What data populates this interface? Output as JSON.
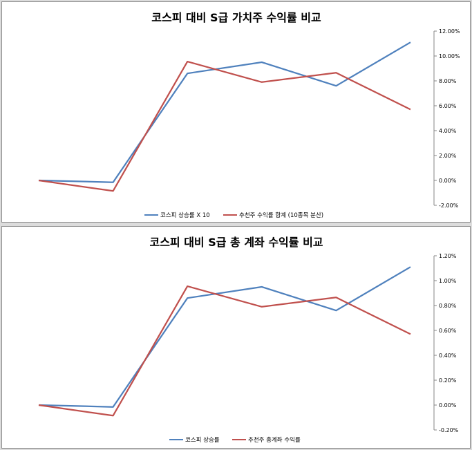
{
  "chart_data": [
    {
      "type": "line",
      "title": "코스피 대비 S급 가치주 수익률 비교",
      "x": [
        1,
        2,
        3,
        4,
        5,
        6
      ],
      "ylim": [
        -0.02,
        0.12
      ],
      "yticks": [
        -0.02,
        0,
        0.02,
        0.04,
        0.06,
        0.08,
        0.1,
        0.12
      ],
      "ytick_labels": [
        "-2.00%",
        "0.00%",
        "2.00%",
        "4.00%",
        "6.00%",
        "8.00%",
        "10.00%",
        "12.00%"
      ],
      "yaxis_side": "right",
      "grid": false,
      "legend": "bottom",
      "series": [
        {
          "name": "코스피 상승률 X 10",
          "color": "#4f81bd",
          "values": [
            0.0,
            -0.0015,
            0.086,
            0.095,
            0.076,
            0.111
          ]
        },
        {
          "name": "추천주 수익률 합계 (10종목 분산)",
          "color": "#c0504d",
          "values": [
            0.0,
            -0.0085,
            0.0955,
            0.079,
            0.0865,
            0.057
          ]
        }
      ]
    },
    {
      "type": "line",
      "title": "코스피 대비 S급 총 계좌 수익률 비교",
      "x": [
        1,
        2,
        3,
        4,
        5,
        6
      ],
      "ylim": [
        -0.002,
        0.012
      ],
      "yticks": [
        -0.002,
        0,
        0.002,
        0.004,
        0.006,
        0.008,
        0.01,
        0.012
      ],
      "ytick_labels": [
        "-0.20%",
        "0.00%",
        "0.20%",
        "0.40%",
        "0.60%",
        "0.80%",
        "1.00%",
        "1.20%"
      ],
      "yaxis_side": "right",
      "grid": false,
      "legend": "bottom",
      "series": [
        {
          "name": "코스피 상승률",
          "color": "#4f81bd",
          "values": [
            0.0,
            -0.00015,
            0.0086,
            0.0095,
            0.0076,
            0.0111
          ]
        },
        {
          "name": "추천주 총계좌 수익률",
          "color": "#c0504d",
          "values": [
            0.0,
            -0.00085,
            0.00955,
            0.0079,
            0.00865,
            0.0057
          ]
        }
      ]
    }
  ]
}
